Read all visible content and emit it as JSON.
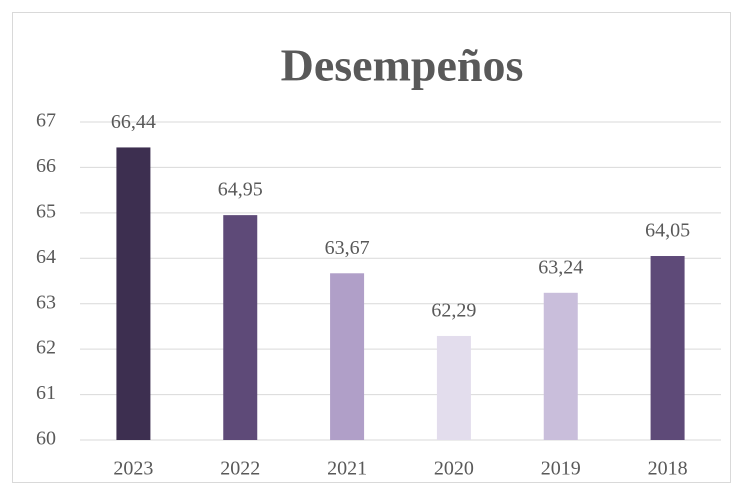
{
  "chart_data": {
    "type": "bar",
    "title": "Desempeños",
    "categories": [
      "2023",
      "2022",
      "2021",
      "2020",
      "2019",
      "2018"
    ],
    "values": [
      66.44,
      64.95,
      63.67,
      62.29,
      63.24,
      64.05
    ],
    "value_labels": [
      "66,44",
      "64,95",
      "63,67",
      "62,29",
      "63,24",
      "64,05"
    ],
    "colors": [
      "#3d2f50",
      "#5e4a78",
      "#b09fc8",
      "#e3dded",
      "#c9bedb",
      "#5e4a78"
    ],
    "ylim": [
      60,
      67
    ],
    "yticks": [
      60,
      61,
      62,
      63,
      64,
      65,
      66,
      67
    ],
    "grid": true
  }
}
